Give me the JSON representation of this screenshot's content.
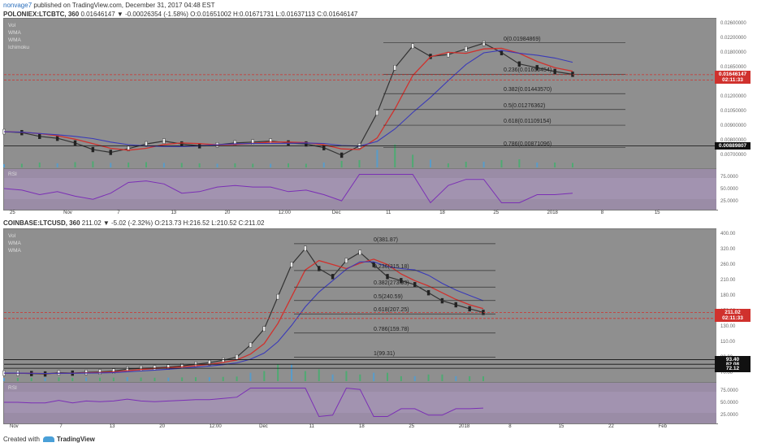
{
  "header": {
    "user": "nonvage7",
    "published": "published on TradingView.com, December 31, 2017 04:48 EST"
  },
  "chart_data": [
    {
      "type": "candlestick",
      "symbol": "POLONIEX:LTCBTC, 360",
      "ohlc_text": "0.01646147 ▼ -0.00026354 (-1.58%) O:0.01651002 H:0.01671731 L:0.01637113 C:0.01646147",
      "legend": [
        "Vol",
        "WMA",
        "WMA",
        "Ichimoku"
      ],
      "yticks": [
        "0.02600000",
        "0.02200000",
        "0.01800000",
        "0.01650000",
        "0.01400000",
        "0.01200000",
        "0.01050000",
        "0.00900000",
        "0.00800000",
        "0.00700000"
      ],
      "price_tags": [
        {
          "label": "0.01646147",
          "color": "#d0312d",
          "y": 0.01646
        },
        {
          "label": "02:11:33",
          "color": "#d0312d",
          "y": 0.0159
        },
        {
          "label": "0.00889807",
          "color": "#111111",
          "y": 0.0089
        }
      ],
      "fib_levels": [
        {
          "label": "0(0.01984869)",
          "value": 0.01985
        },
        {
          "label": "0.236(0.01650454)",
          "value": 0.0165
        },
        {
          "label": "0.382(0.01443570)",
          "value": 0.01444
        },
        {
          "label": "0.5(0.01276362)",
          "value": 0.01276
        },
        {
          "label": "0.618(0.01109154)",
          "value": 0.01109
        },
        {
          "label": "0.786(0.00871096)",
          "value": 0.00871
        }
      ],
      "xticks": [
        "25",
        "Nov",
        "7",
        "13",
        "20",
        "12:00",
        "Dec",
        "11",
        "18",
        "25",
        "2018",
        "8",
        "15"
      ],
      "rsi_label": "RSI",
      "rsi_ticks": [
        "75.0000",
        "50.0000",
        "25.0000"
      ],
      "close_series": [
        0.0104,
        0.0103,
        0.0099,
        0.0097,
        0.0092,
        0.0085,
        0.0082,
        0.0086,
        0.0091,
        0.0094,
        0.0091,
        0.0089,
        0.009,
        0.0092,
        0.0093,
        0.0094,
        0.0092,
        0.0091,
        0.0087,
        0.0079,
        0.0089,
        0.0124,
        0.0172,
        0.0195,
        0.0184,
        0.0186,
        0.0192,
        0.0198,
        0.0188,
        0.0176,
        0.0172,
        0.0168,
        0.0165
      ]
    },
    {
      "type": "candlestick",
      "symbol": "COINBASE:LTCUSD, 360",
      "ohlc_text": "211.02 ▼ -5.02 (-2.32%) O:213.73 H:216.52 L:210.52 C:211.02",
      "legend": [
        "Vol",
        "WMA",
        "WMA"
      ],
      "yticks": [
        "400.00",
        "320.00",
        "260.00",
        "210.00",
        "180.00",
        "150.00",
        "130.00",
        "110.00",
        "80.00",
        "70.00"
      ],
      "price_tags": [
        {
          "label": "211.02",
          "color": "#d0312d",
          "y": 211.02
        },
        {
          "label": "02:11:33",
          "color": "#d0312d",
          "y": 196
        },
        {
          "label": "93.40",
          "color": "#111111",
          "y": 93.4
        },
        {
          "label": "82.08",
          "color": "#111111",
          "y": 82.08
        },
        {
          "label": "72.12",
          "color": "#111111",
          "y": 72.12
        }
      ],
      "fib_levels": [
        {
          "label": "0(381.87)",
          "value": 381.87
        },
        {
          "label": "0.236(315.18)",
          "value": 315.18
        },
        {
          "label": "0.382(273.93)",
          "value": 273.93
        },
        {
          "label": "0.5(240.59)",
          "value": 240.59
        },
        {
          "label": "0.618(207.25)",
          "value": 207.25
        },
        {
          "label": "0.786(159.78)",
          "value": 159.78
        },
        {
          "label": "1(99.31)",
          "value": 99.31
        }
      ],
      "xticks": [
        "Nov",
        "7",
        "13",
        "20",
        "12:00",
        "Dec",
        "11",
        "18",
        "25",
        "2018",
        "8",
        "15",
        "22",
        "Feb"
      ],
      "rsi_label": "RSI",
      "rsi_ticks": [
        "75.0000",
        "50.0000",
        "25.0000"
      ],
      "close_series": [
        60,
        60,
        59,
        58,
        61,
        60,
        62,
        63,
        65,
        70,
        72,
        73,
        75,
        78,
        82,
        86,
        92,
        100,
        130,
        170,
        250,
        330,
        370,
        320,
        300,
        340,
        360,
        330,
        300,
        290,
        280,
        260,
        240,
        230,
        220,
        211
      ]
    }
  ],
  "footer": {
    "prefix": "Created with",
    "brand": "TradingView"
  }
}
